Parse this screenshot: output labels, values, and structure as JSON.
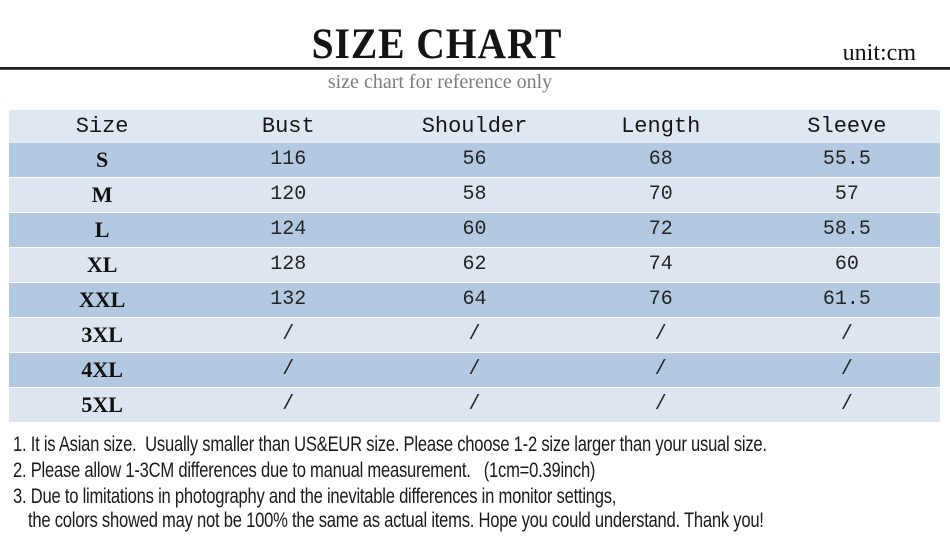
{
  "header": {
    "title": "SIZE CHART",
    "unit_label": "unit:cm",
    "subtitle": "size chart for reference only"
  },
  "size_table": {
    "columns": [
      "Size",
      "Bust",
      "Shoulder",
      "Length",
      "Sleeve"
    ],
    "rows": [
      [
        "S",
        "116",
        "56",
        "68",
        "55.5"
      ],
      [
        "M",
        "120",
        "58",
        "70",
        "57"
      ],
      [
        "L",
        "124",
        "60",
        "72",
        "58.5"
      ],
      [
        "XL",
        "128",
        "62",
        "74",
        "60"
      ],
      [
        "XXL",
        "132",
        "64",
        "76",
        "61.5"
      ],
      [
        "3XL",
        "/",
        "/",
        "/",
        "/"
      ],
      [
        "4XL",
        "/",
        "/",
        "/",
        "/"
      ],
      [
        "5XL",
        "/",
        "/",
        "/",
        "/"
      ]
    ]
  },
  "notes": {
    "lines": [
      "1. It is Asian size.  Usually smaller than US&EUR size. Please choose 1-2 size larger than your usual size.",
      "2. Please allow 1-3CM differences due to manual measurement.   (1cm=0.39inch)",
      "3. Due to limitations in photography and the inevitable differences in monitor settings,",
      "the colors showed may not be 100% the same as actual items. Hope you could understand. Thank you!"
    ]
  },
  "colors": {
    "row_medium_blue": "#b3c9e2",
    "row_pale_blue": "#dde6f0",
    "header_row": "#dfe8f2",
    "divider": "#1f1f1f",
    "subtitle_gray": "#7c7c7c"
  }
}
